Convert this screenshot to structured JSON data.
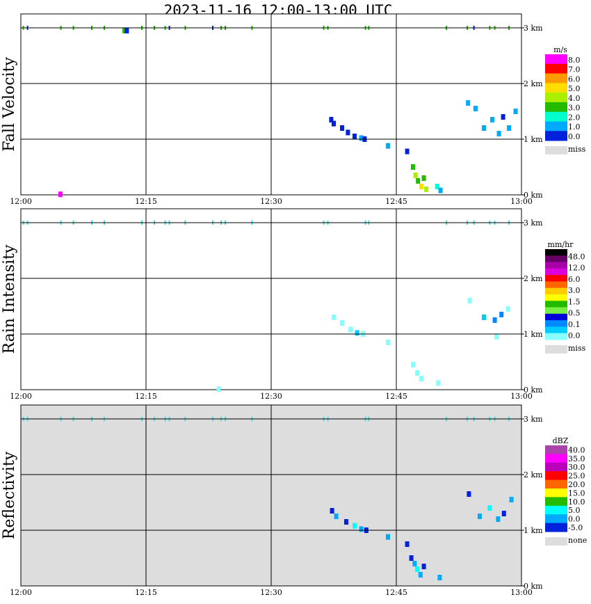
{
  "chart_data": {
    "title": "2023-11-16  12:00-13:00 UTC",
    "type": "heatmap",
    "x_ticks": [
      "12:00",
      "12:15",
      "12:30",
      "12:45",
      "13:00"
    ],
    "y_ticks": [
      "0 km",
      "1 km",
      "2 km",
      "3 km"
    ],
    "xlim": [
      "12:00",
      "13:00"
    ],
    "ylim_km": [
      0,
      3.0
    ],
    "grid": true,
    "panels": [
      {
        "ylabel": "Fall Velocity",
        "unit": "m/s",
        "missing_color": "#ffffff",
        "legend": {
          "labels": [
            "8.0",
            "7.0",
            "6.0",
            "5.0",
            "4.0",
            "3.0",
            "2.0",
            "1.0",
            "0.0"
          ],
          "colors": [
            "#ff00ff",
            "#ff0000",
            "#ff9900",
            "#ffdd00",
            "#aaee00",
            "#22bb00",
            "#00ffcc",
            "#00aaff",
            "#0022dd"
          ],
          "miss_label": "miss",
          "miss_color": "#dddddd"
        },
        "cells": [
          {
            "t": 12.42,
            "h": 2.95,
            "c": "#22bb00"
          },
          {
            "t": 12.7,
            "h": 2.95,
            "c": "#0022dd"
          },
          {
            "t": 4.75,
            "h": 0.01,
            "c": "#ff00ff"
          },
          {
            "t": 37.2,
            "h": 1.35,
            "c": "#0022dd"
          },
          {
            "t": 37.5,
            "h": 1.28,
            "c": "#0022dd"
          },
          {
            "t": 38.5,
            "h": 1.2,
            "c": "#0022dd"
          },
          {
            "t": 39.2,
            "h": 1.12,
            "c": "#0022dd"
          },
          {
            "t": 40.0,
            "h": 1.05,
            "c": "#0022dd"
          },
          {
            "t": 40.8,
            "h": 1.02,
            "c": "#00aaff"
          },
          {
            "t": 41.2,
            "h": 1.0,
            "c": "#0022dd"
          },
          {
            "t": 44.0,
            "h": 0.88,
            "c": "#00aaff"
          },
          {
            "t": 46.3,
            "h": 0.78,
            "c": "#0022dd"
          },
          {
            "t": 47.0,
            "h": 0.5,
            "c": "#22bb00"
          },
          {
            "t": 47.3,
            "h": 0.35,
            "c": "#aaee00"
          },
          {
            "t": 47.6,
            "h": 0.25,
            "c": "#22bb00"
          },
          {
            "t": 48.0,
            "h": 0.15,
            "c": "#ffdd00"
          },
          {
            "t": 48.3,
            "h": 0.3,
            "c": "#22bb00"
          },
          {
            "t": 48.6,
            "h": 0.1,
            "c": "#aaee00"
          },
          {
            "t": 49.9,
            "h": 0.15,
            "c": "#00ffcc"
          },
          {
            "t": 50.3,
            "h": 0.08,
            "c": "#00aaff"
          },
          {
            "t": 53.6,
            "h": 1.65,
            "c": "#00aaff"
          },
          {
            "t": 54.5,
            "h": 1.55,
            "c": "#00aaff"
          },
          {
            "t": 55.5,
            "h": 1.2,
            "c": "#00aaff"
          },
          {
            "t": 56.5,
            "h": 1.35,
            "c": "#00aaff"
          },
          {
            "t": 57.3,
            "h": 1.1,
            "c": "#00aaff"
          },
          {
            "t": 57.8,
            "h": 1.4,
            "c": "#0022dd"
          },
          {
            "t": 58.5,
            "h": 1.2,
            "c": "#00aaff"
          },
          {
            "t": 59.3,
            "h": 1.5,
            "c": "#00aaff"
          }
        ]
      },
      {
        "ylabel": "Rain Intensity",
        "unit": "mm/hr",
        "missing_color": "#ffffff",
        "legend": {
          "labels": [
            "48.0",
            "12.0",
            "6.0",
            "3.0",
            "1.5",
            "0.5",
            "0.1",
            "0.0"
          ],
          "colors": [
            "#000000",
            "#660066",
            "#aa00aa",
            "#dd00dd",
            "#ff0000",
            "#ff6600",
            "#ffcc00",
            "#ffff00",
            "#22bb00",
            "#77ee44",
            "#0000dd",
            "#0088ff",
            "#00ccff",
            "#88ffff"
          ],
          "miss_label": "miss",
          "miss_color": "#dddddd"
        },
        "cells": [
          {
            "t": 37.5,
            "h": 1.3,
            "c": "#88ffff"
          },
          {
            "t": 38.5,
            "h": 1.2,
            "c": "#88ffff"
          },
          {
            "t": 39.5,
            "h": 1.08,
            "c": "#88ffff"
          },
          {
            "t": 40.3,
            "h": 1.02,
            "c": "#00ccff"
          },
          {
            "t": 41.0,
            "h": 1.0,
            "c": "#88ffff"
          },
          {
            "t": 44.0,
            "h": 0.85,
            "c": "#88ffff"
          },
          {
            "t": 47.0,
            "h": 0.45,
            "c": "#88ffff"
          },
          {
            "t": 47.5,
            "h": 0.3,
            "c": "#88ffff"
          },
          {
            "t": 48.0,
            "h": 0.2,
            "c": "#88ffff"
          },
          {
            "t": 50.0,
            "h": 0.12,
            "c": "#88ffff"
          },
          {
            "t": 23.7,
            "h": 0.01,
            "c": "#88ffff"
          },
          {
            "t": 55.5,
            "h": 1.3,
            "c": "#00ccff"
          },
          {
            "t": 56.8,
            "h": 1.25,
            "c": "#0088ff"
          },
          {
            "t": 57.6,
            "h": 1.35,
            "c": "#0088ff"
          },
          {
            "t": 58.4,
            "h": 1.45,
            "c": "#88ffff"
          },
          {
            "t": 53.8,
            "h": 1.6,
            "c": "#88ffff"
          },
          {
            "t": 57.0,
            "h": 0.95,
            "c": "#88ffff"
          }
        ]
      },
      {
        "ylabel": "Reflectivity",
        "unit": "dBZ",
        "missing_color": "#dddddd",
        "legend": {
          "labels": [
            "40.0",
            "35.0",
            "30.0",
            "25.0",
            "20.0",
            "15.0",
            "10.0",
            "5.0",
            "0.0",
            "-5.0"
          ],
          "colors": [
            "#aa44aa",
            "#ff00ff",
            "#bb00bb",
            "#ff0000",
            "#ff6600",
            "#ffff00",
            "#22bb00",
            "#00ffff",
            "#00aaff",
            "#0022dd"
          ],
          "miss_label": "none",
          "miss_color": "#dddddd"
        },
        "cells": [
          {
            "t": 37.3,
            "h": 1.35,
            "c": "#0022dd"
          },
          {
            "t": 37.8,
            "h": 1.25,
            "c": "#00aaff"
          },
          {
            "t": 39.0,
            "h": 1.15,
            "c": "#0022dd"
          },
          {
            "t": 40.0,
            "h": 1.08,
            "c": "#00ffff"
          },
          {
            "t": 40.8,
            "h": 1.02,
            "c": "#00aaff"
          },
          {
            "t": 41.4,
            "h": 1.0,
            "c": "#0022dd"
          },
          {
            "t": 44.0,
            "h": 0.88,
            "c": "#00aaff"
          },
          {
            "t": 46.3,
            "h": 0.75,
            "c": "#0022dd"
          },
          {
            "t": 46.8,
            "h": 0.5,
            "c": "#0022dd"
          },
          {
            "t": 47.2,
            "h": 0.4,
            "c": "#00aaff"
          },
          {
            "t": 47.5,
            "h": 0.3,
            "c": "#00ffff"
          },
          {
            "t": 47.9,
            "h": 0.2,
            "c": "#00aaff"
          },
          {
            "t": 48.3,
            "h": 0.35,
            "c": "#0022dd"
          },
          {
            "t": 50.2,
            "h": 0.15,
            "c": "#00aaff"
          },
          {
            "t": 53.7,
            "h": 1.65,
            "c": "#0022dd"
          },
          {
            "t": 55.0,
            "h": 1.25,
            "c": "#00aaff"
          },
          {
            "t": 56.2,
            "h": 1.4,
            "c": "#00ffff"
          },
          {
            "t": 57.2,
            "h": 1.2,
            "c": "#00aaff"
          },
          {
            "t": 57.9,
            "h": 1.3,
            "c": "#0022dd"
          },
          {
            "t": 58.8,
            "h": 1.55,
            "c": "#00aaff"
          }
        ]
      }
    ],
    "top_ticks": [
      {
        "t": 0.3,
        "c": "#22bb00"
      },
      {
        "t": 0.8,
        "c": "#0022dd"
      },
      {
        "t": 4.8,
        "c": "#22bb00"
      },
      {
        "t": 6.3,
        "c": "#22bb00"
      },
      {
        "t": 8.5,
        "c": "#22bb00"
      },
      {
        "t": 10.0,
        "c": "#22bb00"
      },
      {
        "t": 14.5,
        "c": "#22bb00"
      },
      {
        "t": 16.0,
        "c": "#22bb00"
      },
      {
        "t": 17.3,
        "c": "#22bb00"
      },
      {
        "t": 17.8,
        "c": "#0022dd"
      },
      {
        "t": 19.7,
        "c": "#22bb00"
      },
      {
        "t": 23.0,
        "c": "#0022dd"
      },
      {
        "t": 24.0,
        "c": "#22bb00"
      },
      {
        "t": 24.5,
        "c": "#22bb00"
      },
      {
        "t": 27.7,
        "c": "#22bb00"
      },
      {
        "t": 36.3,
        "c": "#22bb00"
      },
      {
        "t": 36.8,
        "c": "#22bb00"
      },
      {
        "t": 41.3,
        "c": "#22bb00"
      },
      {
        "t": 41.7,
        "c": "#22bb00"
      },
      {
        "t": 51.0,
        "c": "#22bb00"
      },
      {
        "t": 53.5,
        "c": "#22bb00"
      },
      {
        "t": 54.3,
        "c": "#0022dd"
      },
      {
        "t": 56.2,
        "c": "#22bb00"
      },
      {
        "t": 56.8,
        "c": "#22bb00"
      },
      {
        "t": 58.5,
        "c": "#22bb00"
      }
    ]
  }
}
